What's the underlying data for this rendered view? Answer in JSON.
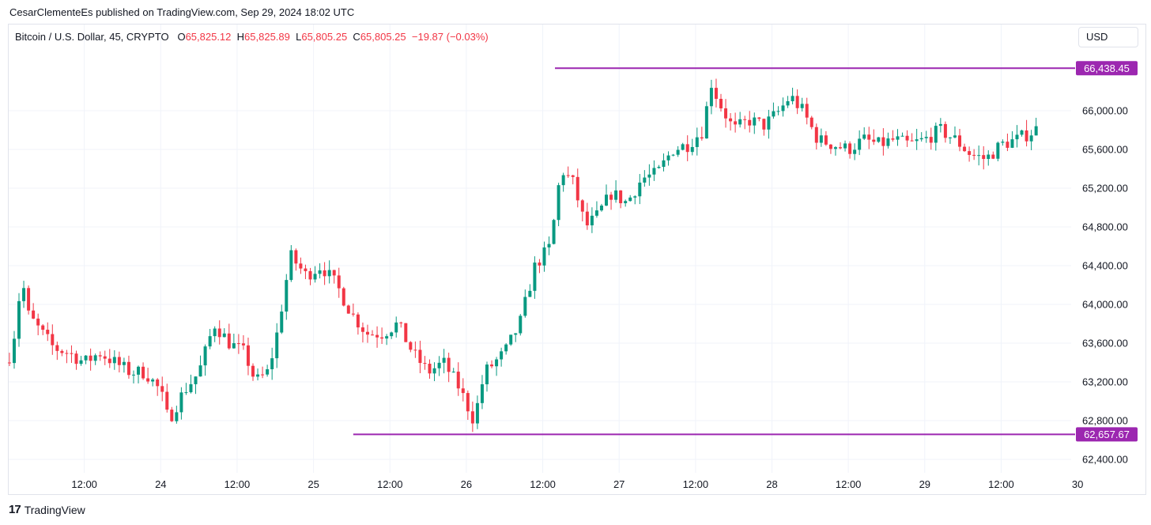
{
  "header": {
    "published_line": "CesarClementeEs published on TradingView.com, Sep 29, 2024 18:02 UTC"
  },
  "legend": {
    "symbol": "Bitcoin / U.S. Dollar, 45, CRYPTO",
    "o_label": "O",
    "o_value": "65,825.12",
    "h_label": "H",
    "h_value": "65,825.89",
    "l_label": "L",
    "l_value": "65,805.25",
    "c_label": "C",
    "c_value": "65,805.25",
    "change": "−19.87 (−0.03%)"
  },
  "currency_button": "USD",
  "footer": {
    "logo_glyph": "17",
    "brand": "TradingView"
  },
  "colors": {
    "up": "#089981",
    "down": "#f23645",
    "level_line": "#9c27b0",
    "grid": "#f0f3fa"
  },
  "chart_data": {
    "type": "candlestick",
    "instrument": "Bitcoin / U.S. Dollar",
    "interval": "45",
    "ylim": [
      62250,
      66700
    ],
    "y_ticks": [
      {
        "value": 66000,
        "label": "66,000.00"
      },
      {
        "value": 65600,
        "label": "65,600.00"
      },
      {
        "value": 65200,
        "label": "65,200.00"
      },
      {
        "value": 64800,
        "label": "64,800.00"
      },
      {
        "value": 64400,
        "label": "64,400.00"
      },
      {
        "value": 64000,
        "label": "64,000.00"
      },
      {
        "value": 63600,
        "label": "63,600.00"
      },
      {
        "value": 63200,
        "label": "63,200.00"
      },
      {
        "value": 62800,
        "label": "62,800.00"
      },
      {
        "value": 62400,
        "label": "62,400.00"
      }
    ],
    "x_range": [
      0,
      7.95
    ],
    "x_ticks": [
      {
        "value": 0.5,
        "label": "12:00"
      },
      {
        "value": 1.0,
        "label": "24"
      },
      {
        "value": 1.5,
        "label": "12:00"
      },
      {
        "value": 2.0,
        "label": "25"
      },
      {
        "value": 2.5,
        "label": "12:00"
      },
      {
        "value": 3.0,
        "label": "26"
      },
      {
        "value": 3.5,
        "label": "12:00"
      },
      {
        "value": 4.0,
        "label": "27"
      },
      {
        "value": 4.5,
        "label": "12:00"
      },
      {
        "value": 5.0,
        "label": "28"
      },
      {
        "value": 5.5,
        "label": "12:00"
      },
      {
        "value": 6.0,
        "label": "29"
      },
      {
        "value": 6.5,
        "label": "12:00"
      },
      {
        "value": 7.0,
        "label": "30"
      }
    ],
    "levels": [
      {
        "value": 66438.45,
        "label": "66,438.45",
        "x_start": 3.58,
        "x_end": 7.05
      },
      {
        "value": 62657.67,
        "label": "62,657.67",
        "x_start": 2.26,
        "x_end": 7.05
      }
    ],
    "last_price": 65805.25,
    "anchors": [
      [
        0.0,
        63400
      ],
      [
        0.05,
        63750
      ],
      [
        0.09,
        64300
      ],
      [
        0.13,
        63900
      ],
      [
        0.2,
        63750
      ],
      [
        0.3,
        63550
      ],
      [
        0.4,
        63500
      ],
      [
        0.5,
        63400
      ],
      [
        0.6,
        63500
      ],
      [
        0.7,
        63400
      ],
      [
        0.8,
        63300
      ],
      [
        0.9,
        63300
      ],
      [
        1.0,
        63100
      ],
      [
        1.05,
        62800
      ],
      [
        1.15,
        63100
      ],
      [
        1.25,
        63300
      ],
      [
        1.35,
        63800
      ],
      [
        1.45,
        63600
      ],
      [
        1.55,
        63500
      ],
      [
        1.62,
        63200
      ],
      [
        1.7,
        63300
      ],
      [
        1.75,
        63600
      ],
      [
        1.85,
        64500
      ],
      [
        1.95,
        64300
      ],
      [
        2.05,
        64400
      ],
      [
        2.15,
        64200
      ],
      [
        2.25,
        63900
      ],
      [
        2.35,
        63700
      ],
      [
        2.45,
        63700
      ],
      [
        2.55,
        63800
      ],
      [
        2.65,
        63500
      ],
      [
        2.75,
        63300
      ],
      [
        2.85,
        63400
      ],
      [
        2.95,
        63150
      ],
      [
        3.05,
        62800
      ],
      [
        3.12,
        63300
      ],
      [
        3.25,
        63500
      ],
      [
        3.35,
        63800
      ],
      [
        3.45,
        64400
      ],
      [
        3.55,
        64600
      ],
      [
        3.62,
        65400
      ],
      [
        3.7,
        65250
      ],
      [
        3.78,
        64800
      ],
      [
        3.85,
        64900
      ],
      [
        3.95,
        65150
      ],
      [
        4.05,
        65050
      ],
      [
        4.15,
        65300
      ],
      [
        4.25,
        65350
      ],
      [
        4.35,
        65600
      ],
      [
        4.45,
        65650
      ],
      [
        4.55,
        65800
      ],
      [
        4.6,
        66300
      ],
      [
        4.65,
        66100
      ],
      [
        4.75,
        65800
      ],
      [
        4.85,
        65900
      ],
      [
        4.95,
        65850
      ],
      [
        5.05,
        66000
      ],
      [
        5.12,
        66150
      ],
      [
        5.2,
        66000
      ],
      [
        5.3,
        65700
      ],
      [
        5.4,
        65650
      ],
      [
        5.5,
        65600
      ],
      [
        5.6,
        65700
      ],
      [
        5.7,
        65650
      ],
      [
        5.8,
        65700
      ],
      [
        5.9,
        65650
      ],
      [
        6.0,
        65700
      ],
      [
        6.1,
        65800
      ],
      [
        6.2,
        65700
      ],
      [
        6.3,
        65550
      ],
      [
        6.4,
        65500
      ],
      [
        6.5,
        65650
      ],
      [
        6.6,
        65700
      ],
      [
        6.7,
        65780
      ],
      [
        6.75,
        65830
      ]
    ]
  }
}
